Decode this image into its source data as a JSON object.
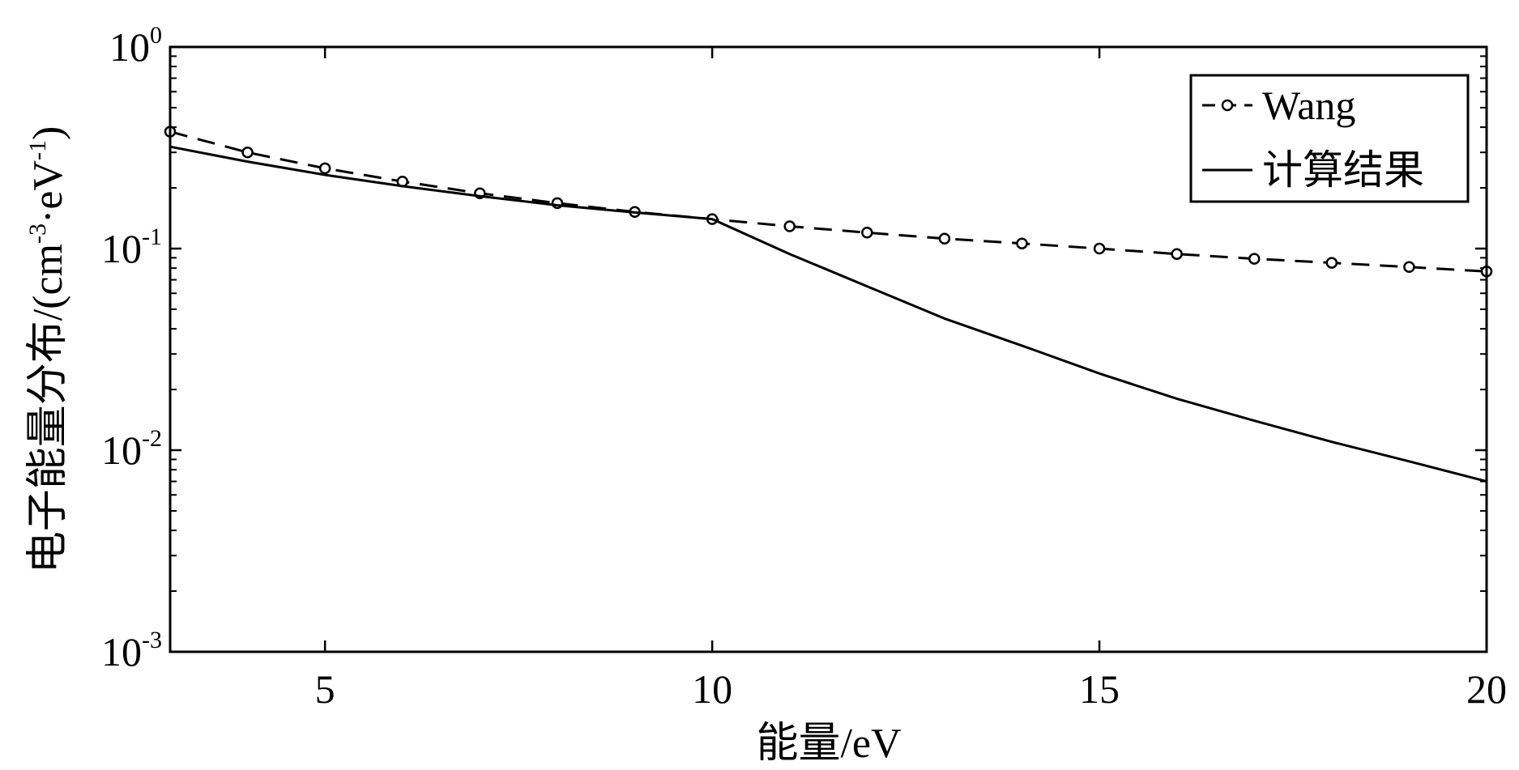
{
  "chart_data": {
    "type": "line",
    "xlabel": "能量/eV",
    "ylabel_main": "电子能量分布/(cm",
    "ylabel_exp1": "-3",
    "ylabel_mid": "·eV",
    "ylabel_exp2": "-1",
    "ylabel_end": ")",
    "xlim": [
      3,
      20
    ],
    "ylim": [
      0.001,
      1
    ],
    "yscale": "log",
    "grid": false,
    "legend_position": "top-right",
    "x_ticks": [
      5,
      10,
      15,
      20
    ],
    "x_tick_labels": [
      "5",
      "10",
      "15",
      "20"
    ],
    "y_ticks": [
      {
        "value": 1,
        "base": "10",
        "exp": "0"
      },
      {
        "value": 0.1,
        "base": "10",
        "exp": "-1"
      },
      {
        "value": 0.01,
        "base": "10",
        "exp": "-2"
      },
      {
        "value": 0.001,
        "base": "10",
        "exp": "-3"
      }
    ],
    "series": [
      {
        "name": "Wang",
        "style": "dashed-circle",
        "color": "#000000",
        "x": [
          3,
          4,
          5,
          6,
          7,
          8,
          9,
          10,
          11,
          12,
          13,
          14,
          15,
          16,
          17,
          18,
          19,
          20
        ],
        "y": [
          0.38,
          0.3,
          0.25,
          0.215,
          0.188,
          0.168,
          0.152,
          0.14,
          0.129,
          0.12,
          0.112,
          0.106,
          0.1,
          0.094,
          0.089,
          0.085,
          0.081,
          0.077
        ]
      },
      {
        "name": "计算结果",
        "style": "solid",
        "color": "#000000",
        "x": [
          3,
          4,
          5,
          6,
          7,
          8,
          9,
          10,
          11,
          12,
          13,
          14,
          15,
          16,
          17,
          18,
          19,
          20
        ],
        "y": [
          0.32,
          0.27,
          0.232,
          0.204,
          0.182,
          0.164,
          0.151,
          0.14,
          0.094,
          0.065,
          0.045,
          0.033,
          0.024,
          0.018,
          0.014,
          0.011,
          0.0088,
          0.007
        ]
      }
    ]
  }
}
